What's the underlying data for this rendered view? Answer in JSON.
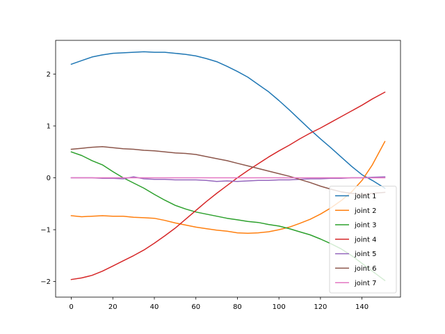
{
  "chart_data": {
    "type": "line",
    "title": "",
    "xlabel": "",
    "ylabel": "",
    "xlim": [
      -7.55,
      158.55
    ],
    "ylim": [
      -2.3,
      2.65
    ],
    "xticks": [
      0,
      20,
      40,
      60,
      80,
      100,
      120,
      140
    ],
    "xtick_labels": [
      "0",
      "20",
      "40",
      "60",
      "80",
      "100",
      "120",
      "140"
    ],
    "yticks": [
      -2,
      -1,
      0,
      1,
      2
    ],
    "ytick_labels": [
      "−2",
      "−1",
      "0",
      "1",
      "2"
    ],
    "grid": false,
    "legend_position": "lower right",
    "series": [
      {
        "name": "joint 1",
        "color": "#1f77b4",
        "x": [
          0,
          5,
          10,
          15,
          20,
          25,
          30,
          35,
          40,
          45,
          50,
          55,
          60,
          65,
          70,
          75,
          80,
          85,
          90,
          95,
          100,
          105,
          110,
          115,
          120,
          125,
          130,
          135,
          140,
          145,
          151
        ],
        "values": [
          2.19,
          2.26,
          2.33,
          2.37,
          2.4,
          2.41,
          2.42,
          2.43,
          2.42,
          2.42,
          2.4,
          2.38,
          2.35,
          2.3,
          2.24,
          2.15,
          2.05,
          1.94,
          1.8,
          1.66,
          1.49,
          1.31,
          1.12,
          0.93,
          0.75,
          0.58,
          0.4,
          0.22,
          0.06,
          -0.05,
          -0.2
        ]
      },
      {
        "name": "joint 2",
        "color": "#ff7f0e",
        "x": [
          0,
          5,
          10,
          15,
          20,
          25,
          30,
          35,
          40,
          45,
          50,
          55,
          60,
          65,
          70,
          75,
          80,
          85,
          90,
          95,
          100,
          105,
          110,
          115,
          120,
          125,
          130,
          135,
          140,
          145,
          151
        ],
        "values": [
          -0.73,
          -0.75,
          -0.74,
          -0.73,
          -0.74,
          -0.74,
          -0.76,
          -0.77,
          -0.78,
          -0.82,
          -0.87,
          -0.91,
          -0.95,
          -0.98,
          -1.01,
          -1.03,
          -1.06,
          -1.07,
          -1.06,
          -1.04,
          -1.0,
          -0.95,
          -0.88,
          -0.8,
          -0.7,
          -0.58,
          -0.44,
          -0.27,
          -0.05,
          0.25,
          0.7
        ]
      },
      {
        "name": "joint 3",
        "color": "#2ca02c",
        "x": [
          0,
          5,
          10,
          15,
          20,
          25,
          30,
          35,
          40,
          45,
          50,
          55,
          60,
          65,
          70,
          75,
          80,
          85,
          90,
          95,
          100,
          105,
          110,
          115,
          120,
          125,
          130,
          135,
          140,
          145,
          151
        ],
        "values": [
          0.5,
          0.43,
          0.33,
          0.25,
          0.12,
          0.0,
          -0.1,
          -0.2,
          -0.32,
          -0.43,
          -0.53,
          -0.6,
          -0.66,
          -0.7,
          -0.74,
          -0.78,
          -0.81,
          -0.84,
          -0.86,
          -0.9,
          -0.93,
          -0.98,
          -1.04,
          -1.1,
          -1.18,
          -1.27,
          -1.37,
          -1.5,
          -1.65,
          -1.8,
          -1.98
        ]
      },
      {
        "name": "joint 4",
        "color": "#d62728",
        "x": [
          0,
          5,
          10,
          15,
          20,
          25,
          30,
          35,
          40,
          45,
          50,
          55,
          60,
          65,
          70,
          75,
          80,
          85,
          90,
          95,
          100,
          105,
          110,
          115,
          120,
          125,
          130,
          135,
          140,
          145,
          151
        ],
        "values": [
          -1.96,
          -1.93,
          -1.88,
          -1.8,
          -1.7,
          -1.6,
          -1.5,
          -1.39,
          -1.26,
          -1.12,
          -0.97,
          -0.8,
          -0.63,
          -0.46,
          -0.3,
          -0.15,
          0.0,
          0.14,
          0.27,
          0.4,
          0.52,
          0.63,
          0.75,
          0.86,
          0.96,
          1.07,
          1.18,
          1.29,
          1.4,
          1.52,
          1.65
        ]
      },
      {
        "name": "joint 5",
        "color": "#9467bd",
        "x": [
          0,
          5,
          10,
          15,
          20,
          25,
          30,
          35,
          40,
          45,
          50,
          55,
          60,
          65,
          70,
          75,
          80,
          85,
          90,
          95,
          100,
          105,
          110,
          115,
          120,
          125,
          130,
          135,
          140,
          145,
          151
        ],
        "values": [
          0.0,
          0.0,
          0.0,
          -0.01,
          -0.01,
          -0.02,
          0.02,
          -0.02,
          -0.03,
          -0.03,
          -0.04,
          -0.04,
          -0.04,
          -0.05,
          -0.07,
          -0.06,
          -0.07,
          -0.06,
          -0.05,
          -0.05,
          -0.04,
          -0.04,
          -0.03,
          -0.02,
          -0.02,
          -0.01,
          -0.01,
          0.0,
          0.0,
          0.01,
          0.02
        ]
      },
      {
        "name": "joint 6",
        "color": "#8c564b",
        "x": [
          0,
          5,
          10,
          15,
          20,
          25,
          30,
          35,
          40,
          45,
          50,
          55,
          60,
          65,
          70,
          75,
          80,
          85,
          90,
          95,
          100,
          105,
          110,
          115,
          120,
          125,
          130,
          135,
          140,
          145,
          151
        ],
        "values": [
          0.55,
          0.57,
          0.59,
          0.6,
          0.58,
          0.56,
          0.55,
          0.53,
          0.52,
          0.5,
          0.48,
          0.47,
          0.45,
          0.41,
          0.37,
          0.33,
          0.28,
          0.23,
          0.18,
          0.13,
          0.08,
          0.03,
          -0.03,
          -0.09,
          -0.16,
          -0.22,
          -0.27,
          -0.3,
          -0.32,
          -0.3,
          -0.28
        ]
      },
      {
        "name": "joint 7",
        "color": "#e377c2",
        "x": [
          0,
          151
        ],
        "values": [
          0.0,
          0.0
        ]
      }
    ]
  }
}
